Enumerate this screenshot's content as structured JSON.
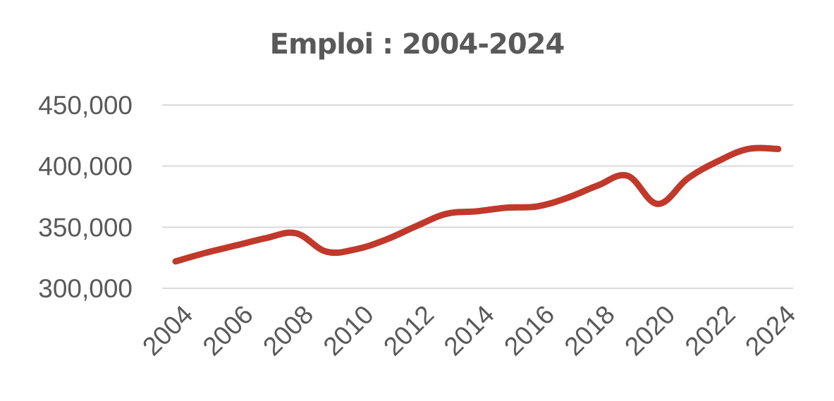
{
  "chart_data": {
    "type": "line",
    "title": "Emploi : 2004-2024",
    "xlabel": "",
    "ylabel": "",
    "x": [
      2004,
      2005,
      2006,
      2007,
      2008,
      2009,
      2010,
      2011,
      2012,
      2013,
      2014,
      2015,
      2016,
      2017,
      2018,
      2019,
      2020,
      2021,
      2022,
      2023,
      2024
    ],
    "x_tick_labels": [
      "2004",
      "2006",
      "2008",
      "2010",
      "2012",
      "2014",
      "2016",
      "2018",
      "2020",
      "2022",
      "2024"
    ],
    "y_tick_labels": [
      "300,000",
      "350,000",
      "400,000",
      "450,000"
    ],
    "y_ticks": [
      300000,
      350000,
      400000,
      450000
    ],
    "ylim": [
      300000,
      450000
    ],
    "grid": true,
    "series": [
      {
        "values": [
          322000,
          329000,
          335000,
          341000,
          345000,
          330000,
          332000,
          340000,
          351000,
          361000,
          363000,
          366000,
          367000,
          374000,
          384000,
          392000,
          369000,
          390000,
          404000,
          414000,
          414000
        ],
        "color": "#c0392b"
      }
    ]
  }
}
